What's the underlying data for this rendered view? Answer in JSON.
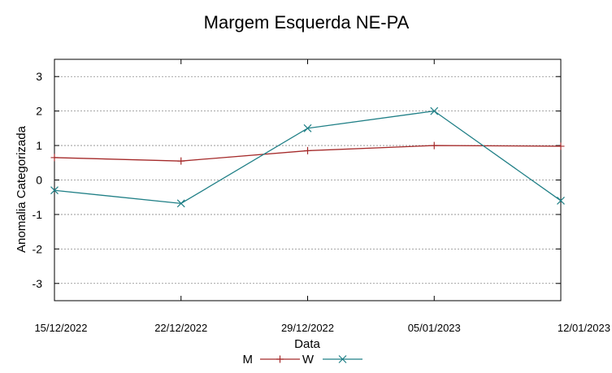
{
  "chart_data": {
    "type": "line",
    "title": "Margem Esquerda NE-PA",
    "xlabel": "Data",
    "ylabel": "Anomalia Categorizada",
    "categories": [
      "15/12/2022",
      "22/12/2022",
      "29/12/2022",
      "05/01/2023",
      "12/01/2023"
    ],
    "yticks": [
      "3",
      "2",
      "1",
      "0",
      "-1",
      "-2",
      "-3"
    ],
    "ylim": [
      -3.5,
      3.5
    ],
    "grid": true,
    "legend": "bottom-center",
    "series": [
      {
        "name": "M",
        "color": "#a52a2a",
        "marker": "plus",
        "values": [
          0.65,
          0.55,
          0.85,
          1.0,
          0.98
        ]
      },
      {
        "name": "W",
        "color": "#1f7f86",
        "marker": "cross",
        "values": [
          -0.3,
          -0.68,
          1.5,
          2.0,
          -0.6
        ]
      }
    ]
  }
}
